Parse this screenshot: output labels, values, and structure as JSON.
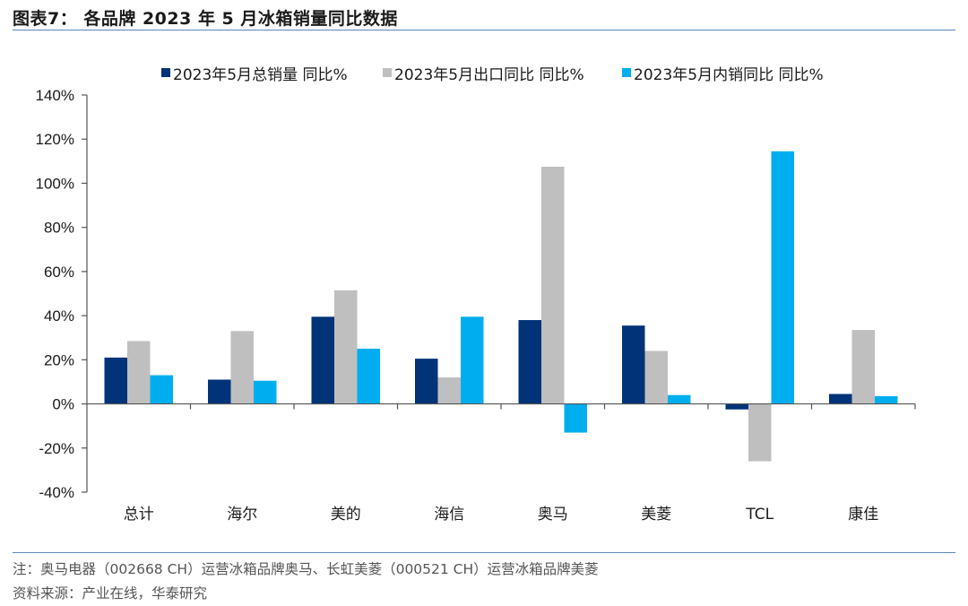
{
  "figure": {
    "title": "图表7： 各品牌 2023 年 5 月冰箱销量同比数据",
    "note": "注：奥马电器（002668 CH）运营冰箱品牌奥马、长虹美菱（000521 CH）运营冰箱品牌美菱",
    "source": "资料来源：产业在线，华泰研究"
  },
  "chart_data": {
    "type": "bar",
    "title": "",
    "xlabel": "",
    "ylabel": "",
    "ylim": [
      -0.4,
      1.4
    ],
    "yticks": [
      -0.4,
      -0.2,
      0,
      0.2,
      0.4,
      0.6,
      0.8,
      1.0,
      1.2,
      1.4
    ],
    "ytick_labels": [
      "-40%",
      "-20%",
      "0%",
      "20%",
      "40%",
      "60%",
      "80%",
      "100%",
      "120%",
      "140%"
    ],
    "categories": [
      "总计",
      "海尔",
      "美的",
      "海信",
      "奥马",
      "美菱",
      "TCL",
      "康佳"
    ],
    "series": [
      {
        "name": "2023年5月总销量 同比%",
        "color": "#003378",
        "values": [
          0.21,
          0.11,
          0.395,
          0.205,
          0.38,
          0.355,
          -0.025,
          0.045
        ]
      },
      {
        "name": "2023年5月出口同比 同比%",
        "color": "#bfbfbf",
        "values": [
          0.285,
          0.33,
          0.515,
          0.12,
          1.075,
          0.24,
          -0.26,
          0.335
        ]
      },
      {
        "name": "2023年5月内销同比 同比%",
        "color": "#00aeef",
        "values": [
          0.13,
          0.105,
          0.25,
          0.395,
          -0.13,
          0.04,
          1.145,
          0.035
        ]
      }
    ],
    "legend_position": "top",
    "grid": false
  }
}
